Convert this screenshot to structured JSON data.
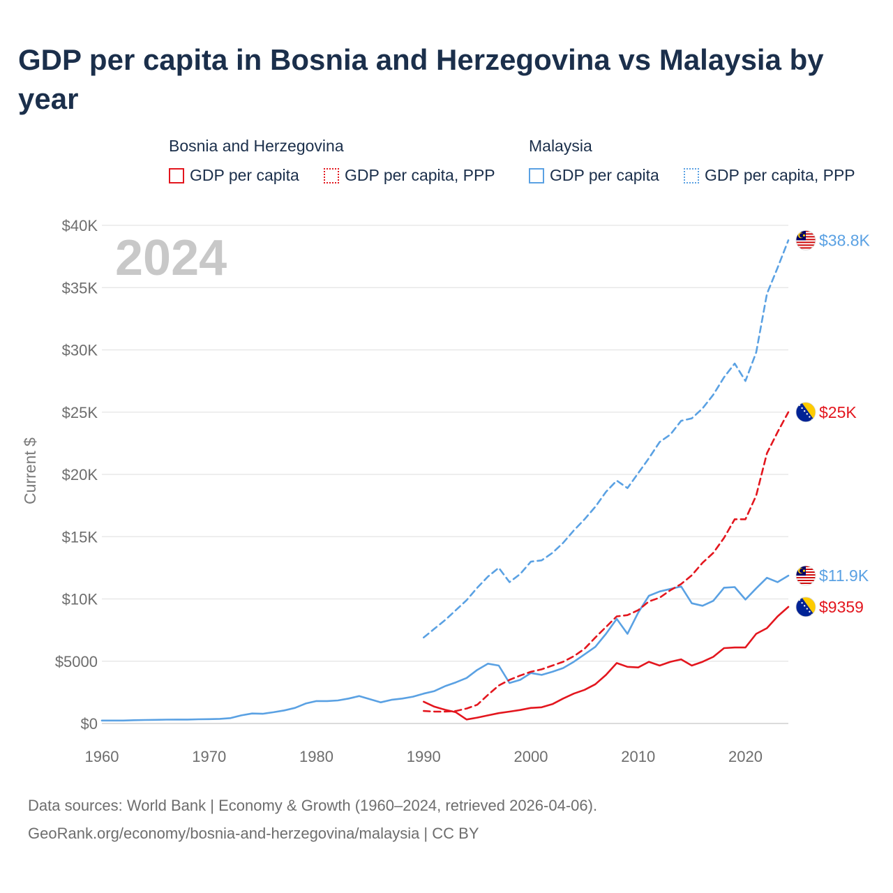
{
  "title": "GDP per capita in Bosnia and Herzegovina vs Malaysia by year",
  "legend": {
    "groups": [
      {
        "name": "Bosnia and Herzegovina",
        "items": [
          "GDP per capita",
          "GDP per capita, PPP"
        ],
        "color": "#e3161e"
      },
      {
        "name": "Malaysia",
        "items": [
          "GDP per capita",
          "GDP per capita, PPP"
        ],
        "color": "#5aa1e3"
      }
    ]
  },
  "footer": {
    "line1": "Data sources: World Bank | Economy & Growth (1960–2024, retrieved 2026-04-06).",
    "line2": "GeoRank.org/economy/bosnia-and-herzegovina/malaysia | CC BY"
  },
  "chart_data": {
    "type": "line",
    "title": "GDP per capita in Bosnia and Herzegovina vs Malaysia by year",
    "xlabel": "",
    "ylabel": "Current $",
    "year_watermark": "2024",
    "xlim": [
      1960,
      2024
    ],
    "ylim": [
      0,
      40000
    ],
    "x_ticks": [
      "1960",
      "1970",
      "1980",
      "1990",
      "2000",
      "2010",
      "2020"
    ],
    "y_ticks": [
      {
        "value": 0,
        "label": "$0"
      },
      {
        "value": 5000,
        "label": "$5000"
      },
      {
        "value": 10000,
        "label": "$10K"
      },
      {
        "value": 15000,
        "label": "$15K"
      },
      {
        "value": 20000,
        "label": "$20K"
      },
      {
        "value": 25000,
        "label": "$25K"
      },
      {
        "value": 30000,
        "label": "$30K"
      },
      {
        "value": 35000,
        "label": "$35K"
      },
      {
        "value": 40000,
        "label": "$40K"
      }
    ],
    "series": [
      {
        "name": "Malaysia GDP per capita",
        "color": "#5aa1e3",
        "dash": "solid",
        "end_label": "$11.9K",
        "flag": "malaysia",
        "start_year": 1960,
        "values": [
          235,
          234,
          234,
          261,
          278,
          290,
          310,
          313,
          315,
          335,
          350,
          370,
          430,
          650,
          800,
          780,
          900,
          1050,
          1250,
          1600,
          1800,
          1800,
          1850,
          2000,
          2200,
          1950,
          1700,
          1900,
          2000,
          2150,
          2400,
          2600,
          3000,
          3300,
          3650,
          4300,
          4800,
          4650,
          3250,
          3500,
          4050,
          3900,
          4150,
          4450,
          4950,
          5550,
          6150,
          7200,
          8400,
          7200,
          8900,
          10250,
          10600,
          10800,
          11000,
          9650,
          9450,
          9850,
          10900,
          10950,
          9950,
          10850,
          11700,
          11350,
          11870
        ]
      },
      {
        "name": "Malaysia GDP per capita, PPP",
        "color": "#5aa1e3",
        "dash": "dashed",
        "end_label": "$38.8K",
        "flag": "malaysia",
        "start_year": 1990,
        "values": [
          6900,
          7600,
          8300,
          9100,
          9900,
          10900,
          11800,
          12500,
          11350,
          12000,
          13000,
          13100,
          13700,
          14500,
          15500,
          16400,
          17400,
          18600,
          19500,
          18900,
          20100,
          21300,
          22600,
          23200,
          24300,
          24500,
          25300,
          26400,
          27800,
          28900,
          27500,
          29800,
          34500,
          36600,
          38800
        ]
      },
      {
        "name": "Bosnia and Herzegovina GDP per capita",
        "color": "#e3161e",
        "dash": "solid",
        "end_label": "$9359",
        "flag": "bosnia",
        "start_year": 1990,
        "values": [
          1750,
          1350,
          1100,
          900,
          320,
          470,
          650,
          830,
          950,
          1080,
          1250,
          1300,
          1550,
          2000,
          2400,
          2700,
          3150,
          3900,
          4850,
          4550,
          4500,
          4950,
          4650,
          4950,
          5150,
          4650,
          4950,
          5350,
          6050,
          6100,
          6100,
          7200,
          7650,
          8600,
          9359
        ]
      },
      {
        "name": "Bosnia and Herzegovina GDP per capita, PPP",
        "color": "#e3161e",
        "dash": "dashed",
        "end_label": "$25K",
        "flag": "bosnia",
        "start_year": 1990,
        "values": [
          1000,
          950,
          950,
          1000,
          1200,
          1500,
          2300,
          3050,
          3500,
          3850,
          4150,
          4350,
          4650,
          4950,
          5400,
          6000,
          6900,
          7750,
          8600,
          8700,
          9100,
          9800,
          10100,
          10700,
          11200,
          11900,
          12900,
          13700,
          14900,
          16400,
          16400,
          18300,
          21700,
          23400,
          25000
        ]
      }
    ]
  }
}
